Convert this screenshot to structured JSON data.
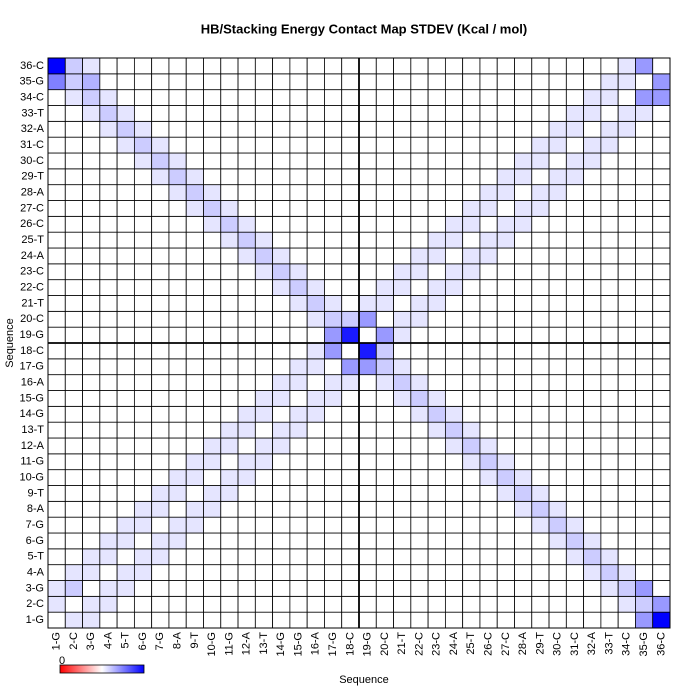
{
  "chart_data": {
    "type": "heatmap",
    "title": "HB/Stacking Energy Contact Map STDEV (Kcal / mol)",
    "x_label": "Sequence",
    "y_label": "Sequence",
    "colorbar_label": "0",
    "zlim": [
      -1,
      1
    ],
    "colors": [
      "#ff0000",
      "#ffffff",
      "#0000ff"
    ],
    "categories": [
      "1-G",
      "2-C",
      "3-G",
      "4-A",
      "5-T",
      "6-G",
      "7-G",
      "8-A",
      "9-T",
      "10-G",
      "11-G",
      "12-A",
      "13-T",
      "14-G",
      "15-G",
      "16-A",
      "17-G",
      "18-C",
      "19-G",
      "20-C",
      "21-T",
      "22-C",
      "23-C",
      "24-A",
      "25-T",
      "26-C",
      "27-C",
      "28-A",
      "29-T",
      "30-C",
      "31-C",
      "32-A",
      "33-T",
      "34-C",
      "35-G",
      "36-C"
    ],
    "values": [
      [
        0,
        0.1,
        0.1,
        0,
        0,
        0,
        0,
        0,
        0,
        0,
        0,
        0,
        0,
        0,
        0,
        0,
        0,
        0,
        0,
        0,
        0,
        0,
        0,
        0,
        0,
        0,
        0,
        0,
        0,
        0,
        0,
        0,
        0,
        0,
        0.4,
        1
      ],
      [
        0.1,
        0,
        0.1,
        0.1,
        0,
        0,
        0,
        0,
        0,
        0,
        0,
        0,
        0,
        0,
        0,
        0,
        0,
        0,
        0,
        0,
        0,
        0,
        0,
        0,
        0,
        0,
        0,
        0,
        0,
        0,
        0,
        0,
        0,
        0.1,
        0.2,
        0.4
      ],
      [
        0.1,
        0.2,
        0,
        0.1,
        0.1,
        0,
        0,
        0,
        0,
        0,
        0,
        0,
        0,
        0,
        0,
        0,
        0,
        0,
        0,
        0,
        0,
        0,
        0,
        0,
        0,
        0,
        0,
        0,
        0,
        0,
        0,
        0,
        0.1,
        0.2,
        0.4,
        0
      ],
      [
        0,
        0.1,
        0.1,
        0,
        0.1,
        0.1,
        0,
        0,
        0,
        0,
        0,
        0,
        0,
        0,
        0,
        0,
        0,
        0,
        0,
        0,
        0,
        0,
        0,
        0,
        0,
        0,
        0,
        0,
        0,
        0,
        0,
        0.1,
        0.2,
        0.1,
        0,
        0
      ],
      [
        0,
        0,
        0.1,
        0.1,
        0,
        0.1,
        0.1,
        0,
        0,
        0,
        0,
        0,
        0,
        0,
        0,
        0,
        0,
        0,
        0,
        0,
        0,
        0,
        0,
        0,
        0,
        0,
        0,
        0,
        0,
        0,
        0.1,
        0.2,
        0.1,
        0,
        0,
        0
      ],
      [
        0,
        0,
        0,
        0.1,
        0.1,
        0,
        0.1,
        0.1,
        0,
        0,
        0,
        0,
        0,
        0,
        0,
        0,
        0,
        0,
        0,
        0,
        0,
        0,
        0,
        0,
        0,
        0,
        0,
        0,
        0,
        0.1,
        0.2,
        0.1,
        0,
        0,
        0,
        0
      ],
      [
        0,
        0,
        0,
        0,
        0.1,
        0.1,
        0,
        0.1,
        0.1,
        0,
        0,
        0,
        0,
        0,
        0,
        0,
        0,
        0,
        0,
        0,
        0,
        0,
        0,
        0,
        0,
        0,
        0,
        0,
        0.1,
        0.2,
        0.1,
        0,
        0,
        0,
        0,
        0
      ],
      [
        0,
        0,
        0,
        0,
        0,
        0.1,
        0.1,
        0,
        0.1,
        0.1,
        0,
        0,
        0,
        0,
        0,
        0,
        0,
        0,
        0,
        0,
        0,
        0,
        0,
        0,
        0,
        0,
        0,
        0.1,
        0.2,
        0.1,
        0,
        0,
        0,
        0,
        0,
        0
      ],
      [
        0,
        0,
        0,
        0,
        0,
        0,
        0.1,
        0.1,
        0,
        0.1,
        0.1,
        0,
        0,
        0,
        0,
        0,
        0,
        0,
        0,
        0,
        0,
        0,
        0,
        0,
        0,
        0,
        0.1,
        0.2,
        0.1,
        0,
        0,
        0,
        0,
        0,
        0,
        0
      ],
      [
        0,
        0,
        0,
        0,
        0,
        0,
        0,
        0.1,
        0.1,
        0,
        0.1,
        0.1,
        0,
        0,
        0,
        0,
        0,
        0,
        0,
        0,
        0,
        0,
        0,
        0,
        0,
        0.1,
        0.2,
        0.1,
        0,
        0,
        0,
        0,
        0,
        0,
        0,
        0
      ],
      [
        0,
        0,
        0,
        0,
        0,
        0,
        0,
        0,
        0.1,
        0.1,
        0,
        0.1,
        0.1,
        0,
        0,
        0,
        0,
        0,
        0,
        0,
        0,
        0,
        0,
        0,
        0.1,
        0.2,
        0.1,
        0,
        0,
        0,
        0,
        0,
        0,
        0,
        0,
        0
      ],
      [
        0,
        0,
        0,
        0,
        0,
        0,
        0,
        0,
        0,
        0.1,
        0.1,
        0,
        0.1,
        0.1,
        0,
        0,
        0,
        0,
        0,
        0,
        0,
        0,
        0,
        0.1,
        0.2,
        0.1,
        0,
        0,
        0,
        0,
        0,
        0,
        0,
        0,
        0,
        0
      ],
      [
        0,
        0,
        0,
        0,
        0,
        0,
        0,
        0,
        0,
        0,
        0.1,
        0.1,
        0,
        0.1,
        0.1,
        0,
        0,
        0,
        0,
        0,
        0,
        0,
        0.1,
        0.2,
        0.1,
        0,
        0,
        0,
        0,
        0,
        0,
        0,
        0,
        0,
        0,
        0
      ],
      [
        0,
        0,
        0,
        0,
        0,
        0,
        0,
        0,
        0,
        0,
        0,
        0.1,
        0.1,
        0,
        0.1,
        0.1,
        0,
        0,
        0,
        0,
        0,
        0.1,
        0.2,
        0.1,
        0,
        0,
        0,
        0,
        0,
        0,
        0,
        0,
        0,
        0,
        0,
        0
      ],
      [
        0,
        0,
        0,
        0,
        0,
        0,
        0,
        0,
        0,
        0,
        0,
        0,
        0.1,
        0.1,
        0,
        0.1,
        0.1,
        0,
        0,
        0,
        0.1,
        0.2,
        0.1,
        0,
        0,
        0,
        0,
        0,
        0,
        0,
        0,
        0,
        0,
        0,
        0,
        0
      ],
      [
        0,
        0,
        0,
        0,
        0,
        0,
        0,
        0,
        0,
        0,
        0,
        0,
        0,
        0.1,
        0.1,
        0,
        0.1,
        0.1,
        0,
        0.1,
        0.2,
        0.1,
        0,
        0,
        0,
        0,
        0,
        0,
        0,
        0,
        0,
        0,
        0,
        0,
        0,
        0
      ],
      [
        0,
        0,
        0,
        0,
        0,
        0,
        0,
        0,
        0,
        0,
        0,
        0,
        0,
        0,
        0.1,
        0.1,
        0,
        0.4,
        0.4,
        0.2,
        0.1,
        0,
        0,
        0,
        0,
        0,
        0,
        0,
        0,
        0,
        0,
        0,
        0,
        0,
        0,
        0
      ],
      [
        0,
        0,
        0,
        0,
        0,
        0,
        0,
        0,
        0,
        0,
        0,
        0,
        0,
        0,
        0,
        0.1,
        0.4,
        0,
        0.9,
        0.2,
        0,
        0,
        0,
        0,
        0,
        0,
        0,
        0,
        0,
        0,
        0,
        0,
        0,
        0,
        0,
        0
      ],
      [
        0,
        0,
        0,
        0,
        0,
        0,
        0,
        0,
        0,
        0,
        0,
        0,
        0,
        0,
        0,
        0,
        0.4,
        0.9,
        0,
        0.4,
        0.1,
        0,
        0,
        0,
        0,
        0,
        0,
        0,
        0,
        0,
        0,
        0,
        0,
        0,
        0,
        0
      ],
      [
        0,
        0,
        0,
        0,
        0,
        0,
        0,
        0,
        0,
        0,
        0,
        0,
        0,
        0,
        0,
        0.1,
        0.2,
        0.2,
        0.4,
        0,
        0.1,
        0.1,
        0,
        0,
        0,
        0,
        0,
        0,
        0,
        0,
        0,
        0,
        0,
        0,
        0,
        0
      ],
      [
        0,
        0,
        0,
        0,
        0,
        0,
        0,
        0,
        0,
        0,
        0,
        0,
        0,
        0,
        0.1,
        0.2,
        0.1,
        0,
        0.1,
        0.1,
        0,
        0.1,
        0.1,
        0,
        0,
        0,
        0,
        0,
        0,
        0,
        0,
        0,
        0,
        0,
        0,
        0
      ],
      [
        0,
        0,
        0,
        0,
        0,
        0,
        0,
        0,
        0,
        0,
        0,
        0,
        0,
        0.1,
        0.2,
        0.1,
        0,
        0,
        0,
        0.1,
        0.1,
        0,
        0.1,
        0.1,
        0,
        0,
        0,
        0,
        0,
        0,
        0,
        0,
        0,
        0,
        0,
        0
      ],
      [
        0,
        0,
        0,
        0,
        0,
        0,
        0,
        0,
        0,
        0,
        0,
        0,
        0.1,
        0.2,
        0.1,
        0,
        0,
        0,
        0,
        0,
        0.1,
        0.1,
        0,
        0.1,
        0.1,
        0,
        0,
        0,
        0,
        0,
        0,
        0,
        0,
        0,
        0,
        0
      ],
      [
        0,
        0,
        0,
        0,
        0,
        0,
        0,
        0,
        0,
        0,
        0,
        0.1,
        0.2,
        0.1,
        0,
        0,
        0,
        0,
        0,
        0,
        0,
        0.1,
        0.1,
        0,
        0.1,
        0.1,
        0,
        0,
        0,
        0,
        0,
        0,
        0,
        0,
        0,
        0
      ],
      [
        0,
        0,
        0,
        0,
        0,
        0,
        0,
        0,
        0,
        0,
        0.1,
        0.2,
        0.1,
        0,
        0,
        0,
        0,
        0,
        0,
        0,
        0,
        0,
        0.1,
        0.1,
        0,
        0.1,
        0.1,
        0,
        0,
        0,
        0,
        0,
        0,
        0,
        0,
        0
      ],
      [
        0,
        0,
        0,
        0,
        0,
        0,
        0,
        0,
        0,
        0.1,
        0.2,
        0.1,
        0,
        0,
        0,
        0,
        0,
        0,
        0,
        0,
        0,
        0,
        0,
        0.1,
        0.1,
        0,
        0.1,
        0.1,
        0,
        0,
        0,
        0,
        0,
        0,
        0,
        0
      ],
      [
        0,
        0,
        0,
        0,
        0,
        0,
        0,
        0,
        0.1,
        0.2,
        0.1,
        0,
        0,
        0,
        0,
        0,
        0,
        0,
        0,
        0,
        0,
        0,
        0,
        0,
        0.1,
        0.1,
        0,
        0.1,
        0.1,
        0,
        0,
        0,
        0,
        0,
        0,
        0
      ],
      [
        0,
        0,
        0,
        0,
        0,
        0,
        0,
        0.1,
        0.2,
        0.1,
        0,
        0,
        0,
        0,
        0,
        0,
        0,
        0,
        0,
        0,
        0,
        0,
        0,
        0,
        0,
        0.1,
        0.1,
        0,
        0.1,
        0.1,
        0,
        0,
        0,
        0,
        0,
        0
      ],
      [
        0,
        0,
        0,
        0,
        0,
        0,
        0.1,
        0.2,
        0.1,
        0,
        0,
        0,
        0,
        0,
        0,
        0,
        0,
        0,
        0,
        0,
        0,
        0,
        0,
        0,
        0,
        0,
        0.1,
        0.1,
        0,
        0.1,
        0.1,
        0,
        0,
        0,
        0,
        0
      ],
      [
        0,
        0,
        0,
        0,
        0,
        0.1,
        0.2,
        0.1,
        0,
        0,
        0,
        0,
        0,
        0,
        0,
        0,
        0,
        0,
        0,
        0,
        0,
        0,
        0,
        0,
        0,
        0,
        0,
        0.1,
        0.1,
        0,
        0.1,
        0.1,
        0,
        0,
        0,
        0
      ],
      [
        0,
        0,
        0,
        0,
        0.1,
        0.2,
        0.1,
        0,
        0,
        0,
        0,
        0,
        0,
        0,
        0,
        0,
        0,
        0,
        0,
        0,
        0,
        0,
        0,
        0,
        0,
        0,
        0,
        0,
        0.1,
        0.1,
        0,
        0.1,
        0.1,
        0,
        0,
        0
      ],
      [
        0,
        0,
        0,
        0.1,
        0.2,
        0.1,
        0,
        0,
        0,
        0,
        0,
        0,
        0,
        0,
        0,
        0,
        0,
        0,
        0,
        0,
        0,
        0,
        0,
        0,
        0,
        0,
        0,
        0,
        0,
        0.1,
        0.1,
        0,
        0.1,
        0.1,
        0,
        0
      ],
      [
        0,
        0,
        0.1,
        0.2,
        0.1,
        0,
        0,
        0,
        0,
        0,
        0,
        0,
        0,
        0,
        0,
        0,
        0,
        0,
        0,
        0,
        0,
        0,
        0,
        0,
        0,
        0,
        0,
        0,
        0,
        0,
        0.1,
        0.1,
        0,
        0.1,
        0.1,
        0
      ],
      [
        0,
        0.1,
        0.2,
        0.1,
        0,
        0,
        0,
        0,
        0,
        0,
        0,
        0,
        0,
        0,
        0,
        0,
        0,
        0,
        0,
        0,
        0,
        0,
        0,
        0,
        0,
        0,
        0,
        0,
        0,
        0,
        0,
        0.1,
        0.1,
        0,
        0.4,
        0.4
      ],
      [
        0.5,
        0.2,
        0.3,
        0,
        0,
        0,
        0,
        0,
        0,
        0,
        0,
        0,
        0,
        0,
        0,
        0,
        0,
        0,
        0,
        0,
        0,
        0,
        0,
        0,
        0,
        0,
        0,
        0,
        0,
        0,
        0,
        0,
        0.1,
        0.1,
        0,
        0.4
      ],
      [
        1,
        0.2,
        0.1,
        0,
        0,
        0,
        0,
        0,
        0,
        0,
        0,
        0,
        0,
        0,
        0,
        0,
        0,
        0,
        0,
        0,
        0,
        0,
        0,
        0,
        0,
        0,
        0,
        0,
        0,
        0,
        0,
        0,
        0,
        0.1,
        0.4,
        0
      ]
    ]
  }
}
